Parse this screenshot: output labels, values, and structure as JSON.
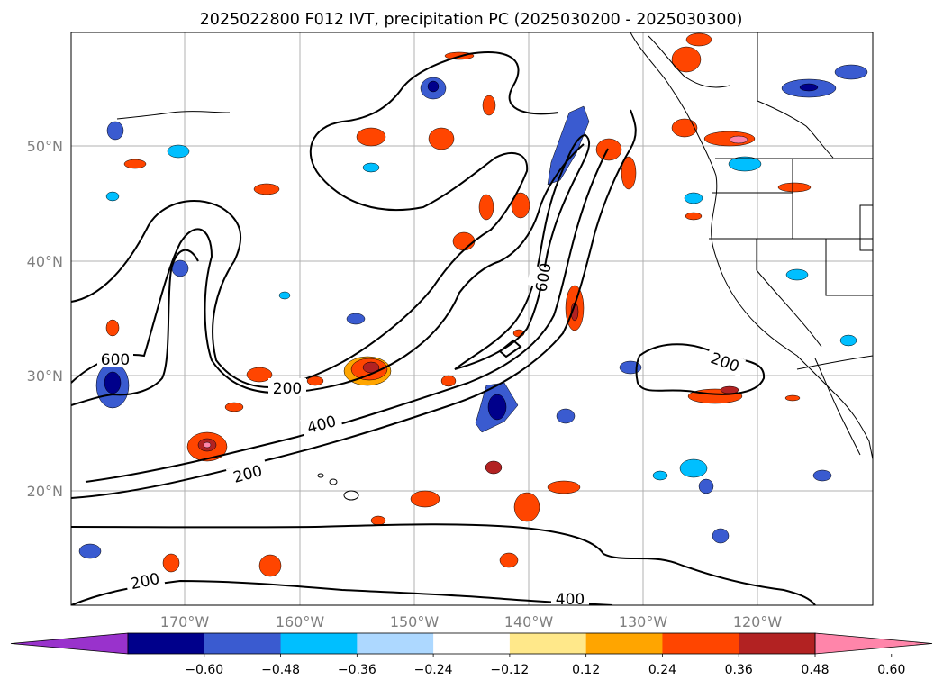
{
  "title": "2025022800 F012 IVT, precipitation PC (2025030200 - 2025030300)",
  "map": {
    "latitude_labels": [
      "50°N",
      "40°N",
      "30°N",
      "20°N"
    ],
    "longitude_labels": [
      "170°W",
      "160°W",
      "150°W",
      "140°W",
      "130°W",
      "120°W"
    ],
    "ivt_contour_levels": [
      200,
      400,
      600
    ],
    "ivt_contour_labels": [
      "600",
      "200",
      "400",
      "200",
      "600",
      "200",
      "200",
      "400"
    ]
  },
  "colorbar": {
    "tick_labels": [
      "−0.60",
      "−0.48",
      "−0.36",
      "−0.24",
      "−0.12",
      "0.12",
      "0.24",
      "0.36",
      "0.48",
      "0.60"
    ],
    "colors": [
      "#9932cc",
      "#00008b",
      "#3a5bd0",
      "#00bfff",
      "#add8ff",
      "#ffffff",
      "#ffe88a",
      "#ffa500",
      "#ff4500",
      "#b22222",
      "#ff85aa"
    ],
    "extend": "both"
  }
}
